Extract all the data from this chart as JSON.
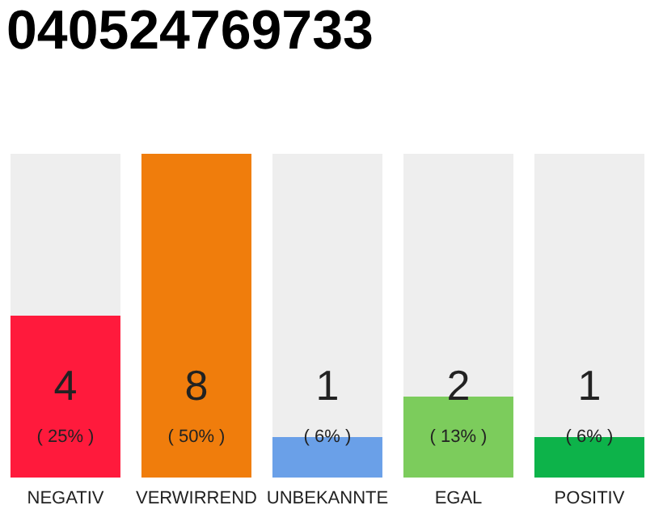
{
  "chart_data": {
    "type": "bar",
    "title": "040524769733",
    "categories": [
      "NEGATIV",
      "VERWIRREND",
      "UNBEKANNTE",
      "EGAL",
      "POSITIV"
    ],
    "values": [
      4,
      8,
      1,
      2,
      1
    ],
    "colors": [
      "#ff1a3c",
      "#f07d0c",
      "#6aa0e8",
      "#7ccc5c",
      "#0db34a"
    ],
    "value_labels": [
      "4\n( 25% )",
      "8\n( 50% )",
      "1\n( 6% )",
      "2\n( 13% )",
      "1\n( 6% )"
    ],
    "ylim": [
      0,
      8
    ],
    "tick_labels": "x"
  }
}
